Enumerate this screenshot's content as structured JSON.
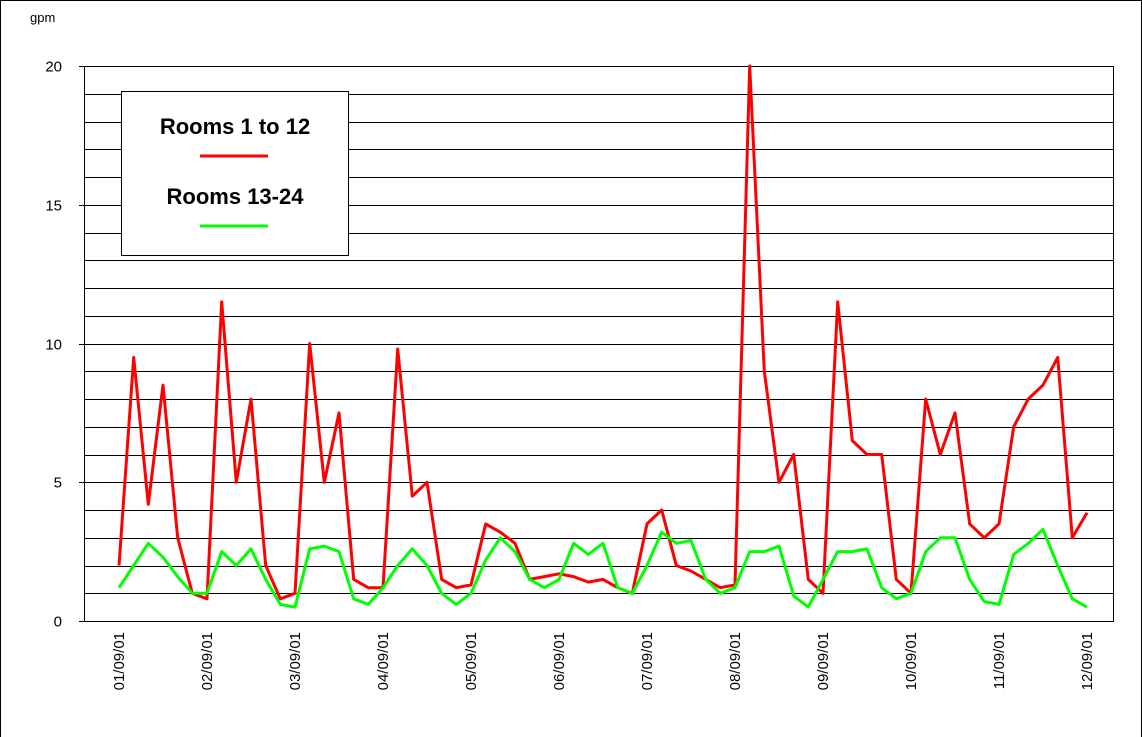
{
  "chart_data": {
    "type": "line",
    "y_unit": "gpm",
    "categories": [
      "01/09/01",
      null,
      null,
      null,
      null,
      null,
      "02/09/01",
      null,
      null,
      null,
      null,
      null,
      "03/09/01",
      null,
      null,
      null,
      null,
      null,
      "04/09/01",
      null,
      null,
      null,
      null,
      null,
      "05/09/01",
      null,
      null,
      null,
      null,
      null,
      "06/09/01",
      null,
      null,
      null,
      null,
      null,
      "07/09/01",
      null,
      null,
      null,
      null,
      null,
      "08/09/01",
      null,
      null,
      null,
      null,
      null,
      "09/09/01",
      null,
      null,
      null,
      null,
      null,
      "10/09/01",
      null,
      null,
      null,
      null,
      null,
      "11/09/01",
      null,
      null,
      null,
      null,
      null,
      "12/09/01"
    ],
    "series": [
      {
        "name": "Rooms 1 to 12",
        "color": "#ff0000",
        "values": [
          2,
          9.5,
          4.2,
          8.5,
          3,
          1,
          0.8,
          11.5,
          5,
          8,
          2,
          0.8,
          1,
          10,
          5,
          7.5,
          1.5,
          1.2,
          1.2,
          9.8,
          4.5,
          5,
          1.5,
          1.2,
          1.3,
          3.5,
          3.2,
          2.8,
          1.5,
          1.6,
          1.7,
          1.6,
          1.4,
          1.5,
          1.2,
          1,
          3.5,
          4,
          2,
          1.8,
          1.5,
          1.2,
          1.3,
          20,
          9,
          5,
          6,
          1.5,
          1,
          11.5,
          6.5,
          6,
          6,
          1.5,
          1,
          8,
          6,
          7.5,
          3.5,
          3,
          3.5,
          7,
          8,
          8.5,
          9.5,
          3,
          3.9
        ]
      },
      {
        "name": "Rooms 13-24",
        "color": "#00ff00",
        "values": [
          1.2,
          2,
          2.8,
          2.3,
          1.6,
          1,
          1,
          2.5,
          2,
          2.6,
          1.5,
          0.6,
          0.5,
          2.6,
          2.7,
          2.5,
          0.8,
          0.6,
          1.2,
          2,
          2.6,
          2,
          1,
          0.6,
          1,
          2.2,
          3,
          2.5,
          1.5,
          1.2,
          1.5,
          2.8,
          2.4,
          2.8,
          1.2,
          1,
          2,
          3.2,
          2.8,
          2.9,
          1.5,
          1,
          1.2,
          2.5,
          2.5,
          2.7,
          0.9,
          0.5,
          1.5,
          2.5,
          2.5,
          2.6,
          1.2,
          0.8,
          1,
          2.5,
          3,
          3,
          1.5,
          0.7,
          0.6,
          2.4,
          2.8,
          3.3,
          2,
          0.8,
          0.5
        ]
      }
    ],
    "ylim": [
      0,
      20
    ],
    "yticks": [
      0,
      5,
      10,
      15,
      20
    ],
    "y_minor_ticks": [
      1,
      2,
      3,
      4,
      6,
      7,
      8,
      9,
      11,
      12,
      13,
      14,
      16,
      17,
      18,
      19
    ],
    "grid": true
  }
}
